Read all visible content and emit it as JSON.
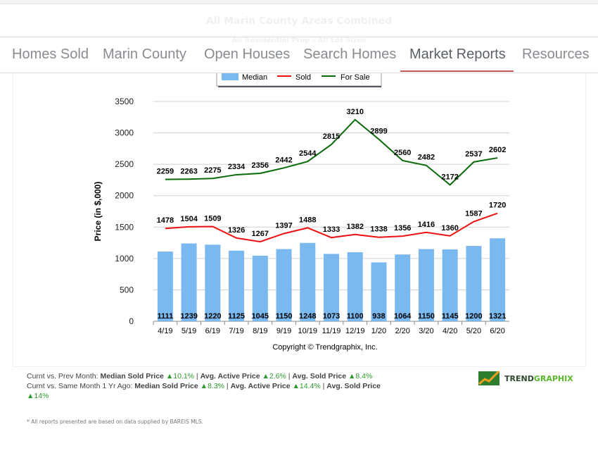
{
  "header": {
    "title": "All Marin County Areas Combined",
    "subtitle": "All Residential Prop - All Lot Sizes"
  },
  "nav": {
    "items": [
      "Homes Sold",
      "Marin County",
      "Open Houses",
      "Search Homes",
      "Market Reports",
      "Resources"
    ],
    "active": "Market Reports"
  },
  "chart_data": {
    "type": "bar",
    "categories": [
      "4/19",
      "5/19",
      "6/19",
      "7/19",
      "8/19",
      "9/19",
      "10/19",
      "11/19",
      "12/19",
      "1/20",
      "2/20",
      "3/20",
      "4/20",
      "5/20",
      "6/20"
    ],
    "series": [
      {
        "name": "Median",
        "type": "bar",
        "color": "#7ab8f0",
        "values": [
          1111,
          1239,
          1220,
          1125,
          1045,
          1150,
          1248,
          1073,
          1100,
          938,
          1064,
          1150,
          1145,
          1200,
          1321
        ]
      },
      {
        "name": "Sold",
        "type": "line",
        "color": "#ee1111",
        "values": [
          1478,
          1504,
          1509,
          1326,
          1267,
          1397,
          1488,
          1333,
          1382,
          1338,
          1356,
          1416,
          1360,
          1587,
          1720
        ]
      },
      {
        "name": "For Sale",
        "type": "line",
        "color": "#0a6a0a",
        "values": [
          2259,
          2263,
          2275,
          2334,
          2356,
          2442,
          2544,
          2815,
          3210,
          2899,
          2560,
          2482,
          2172,
          2537,
          2602
        ]
      }
    ],
    "ylabel": "Price (in $,000)",
    "ylim": [
      0,
      3500
    ],
    "yticks": [
      "0",
      "500",
      "1000",
      "1500",
      "2000",
      "2500",
      "3000",
      "3500"
    ],
    "grid": true,
    "legend": "top",
    "credit": "Copyright © Trendgraphix, Inc."
  },
  "footer": {
    "l1_prefix": "Curnt vs. Prev Month: ",
    "l1_a": "Median Sold Price",
    "l1_av": "10.1%",
    "l1_b": "Avg. Active Price",
    "l1_bv": "2.6%",
    "l1_c": "Avg. Sold Price",
    "l1_cv": "8.4%",
    "l2_prefix": "Curnt vs. Same Month 1 Yr Ago: ",
    "l2_a": "Median Sold Price",
    "l2_av": "8.3%",
    "l2_b": "Avg. Active Price",
    "l2_bv": "14.4%",
    "l2_c": "Avg. Sold Price",
    "l2_cv": "14%",
    "note": "* All reports presented are based on data supplied by BAREIS MLS.",
    "logo_a": "TREND",
    "logo_b": "GRAPHIX"
  }
}
